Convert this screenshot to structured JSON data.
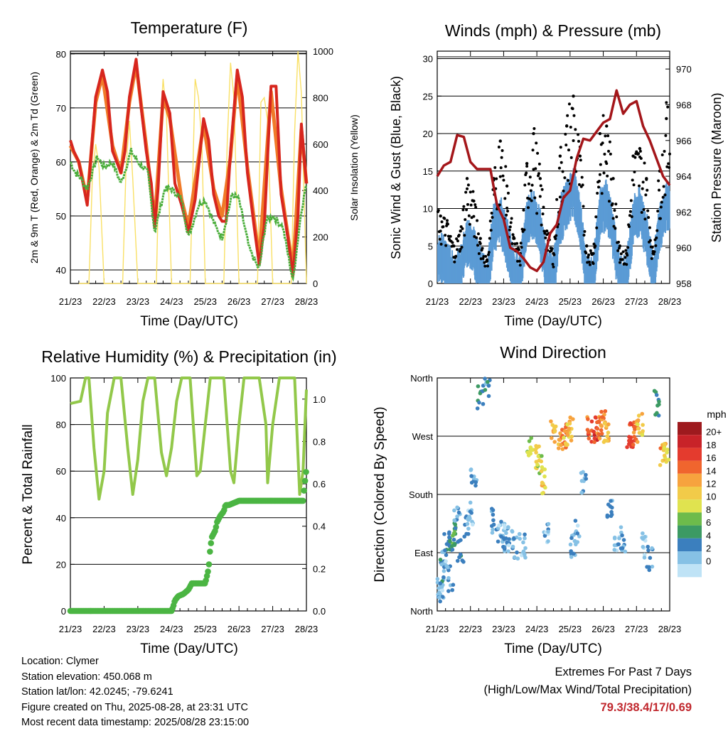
{
  "colors": {
    "temp_2m": "#d7261e",
    "temp_9m": "#f07a28",
    "dewpoint": "#4bae3c",
    "solar": "#f9e066",
    "gust": "#000000",
    "wind": "#5b9bd5",
    "pressure": "#a4161a",
    "rh": "#92c84a",
    "precip": "#4bb543"
  },
  "x_ticks": [
    "21/23",
    "22/23",
    "23/23",
    "24/23",
    "25/23",
    "26/23",
    "27/23",
    "28/23"
  ],
  "temperature": {
    "title": "Temperature (F)",
    "xlabel": "Time (Day/UTC)",
    "ylabel": "2m & 9m T (Red, Orange) & 2m Td (Green)",
    "y2label": "Solar Insolation (Yellow)"
  },
  "winds": {
    "title": "Winds (mph) & Pressure (mb)",
    "xlabel": "Time (Day/UTC)",
    "ylabel": "Sonic Wind & Gust (Blue, Black)",
    "y2label": "Station Pressure (Maroon)"
  },
  "humidity": {
    "title": "Relative Humidity (%) & Precipitation (in)",
    "xlabel": "Time (Day/UTC)",
    "ylabel": "Percent & Total Rainfall"
  },
  "direction": {
    "title": "Wind Direction",
    "xlabel": "Time (Day/UTC)",
    "ylabel": "Direction (Colored By Speed)",
    "legend_title": "mph",
    "legend_labels": [
      "20+",
      "18",
      "16",
      "14",
      "12",
      "10",
      "8",
      "6",
      "4",
      "2",
      "0"
    ],
    "legend_colors": [
      "#9e1a1e",
      "#c82329",
      "#e43b2e",
      "#f0652e",
      "#f7a33e",
      "#f2cb49",
      "#e0e34f",
      "#6dbb4b",
      "#3c9a63",
      "#3b7fbe",
      "#86c1e5",
      "#bfe3f6"
    ]
  },
  "info": {
    "location": "Location: Clymer",
    "elevation": "Station elevation: 450.068 m",
    "latlon": "Station lat/lon: 42.0245; -79.6241",
    "created": "Figure created on Thu, 2025-08-28, at 23:31 UTC",
    "recent": "Most recent data timestamp: 2025/08/28 23:15:00"
  },
  "extremes": {
    "title": "Extremes For Past 7 Days",
    "subtitle": "(High/Low/Max Wind/Total Precipitation)",
    "values": "79.3/38.4/17/0.69"
  },
  "chart_data": [
    {
      "type": "line",
      "title": "Temperature (F)",
      "xlabel": "Time (Day/UTC)",
      "ylabel": "2m & 9m T (Red, Orange) & 2m Td (Green)",
      "y2label": "Solar Insolation (Yellow)",
      "x_unit": "days since 21/23 UTC",
      "ylim": [
        37.5,
        80.5
      ],
      "y2lim": [
        0,
        1000
      ],
      "y_ticks": [
        40,
        50,
        60,
        70,
        80
      ],
      "y2_ticks": [
        0,
        200,
        400,
        600,
        800,
        1000
      ],
      "series": [
        {
          "name": "2m T",
          "axis": "left",
          "x": [
            0,
            0.1,
            0.25,
            0.5,
            0.62,
            0.75,
            0.95,
            1.1,
            1.25,
            1.5,
            1.62,
            1.75,
            1.95,
            2.1,
            2.25,
            2.4,
            2.5,
            2.6,
            2.75,
            2.95,
            3.1,
            3.3,
            3.5,
            3.7,
            3.95,
            4.1,
            4.25,
            4.4,
            4.5,
            4.62,
            4.75,
            4.95,
            5.1,
            5.25,
            5.45,
            5.6,
            5.75,
            5.95,
            6.1,
            6.25,
            6.45,
            6.6,
            6.75,
            6.85,
            7.0
          ],
          "y": [
            64,
            62,
            60,
            52,
            62,
            72,
            77,
            73,
            62,
            58,
            62,
            72,
            79,
            70,
            62,
            56,
            48,
            55,
            73,
            69,
            56,
            52,
            47,
            53,
            68,
            64,
            54,
            50,
            49,
            49,
            62,
            77,
            72,
            58,
            48,
            41,
            48,
            74,
            74,
            54,
            46,
            39,
            50,
            67,
            56
          ]
        },
        {
          "name": "9m T",
          "axis": "left",
          "x": [
            0,
            0.25,
            0.5,
            0.75,
            0.95,
            1.25,
            1.5,
            1.75,
            1.95,
            2.25,
            2.5,
            2.75,
            2.95,
            3.3,
            3.5,
            3.95,
            4.25,
            4.5,
            4.75,
            4.95,
            5.25,
            5.6,
            5.95,
            6.25,
            6.6,
            6.85,
            7.0
          ],
          "y": [
            63,
            60,
            53,
            71,
            76,
            63,
            58,
            71,
            78,
            63,
            49,
            72,
            68,
            53,
            48,
            67,
            55,
            50,
            61,
            76,
            59,
            42,
            73,
            55,
            40,
            66,
            56
          ]
        },
        {
          "name": "2m Td",
          "axis": "left",
          "x": [
            0,
            0.15,
            0.3,
            0.5,
            0.8,
            1.0,
            1.25,
            1.5,
            1.8,
            2.0,
            2.3,
            2.5,
            2.8,
            3.0,
            3.3,
            3.5,
            3.8,
            4.0,
            4.3,
            4.5,
            4.8,
            5.0,
            5.3,
            5.6,
            5.8,
            6.0,
            6.3,
            6.6,
            6.85,
            7.0
          ],
          "y": [
            60,
            58,
            57,
            55,
            61,
            59,
            60,
            56,
            62,
            60,
            58,
            47,
            55,
            55,
            53,
            46,
            52,
            53,
            48,
            46,
            54,
            53,
            44,
            40,
            49,
            50,
            48,
            38,
            51,
            56
          ]
        },
        {
          "name": "Solar",
          "axis": "right",
          "x": [
            0.25,
            0.55,
            0.65,
            0.75,
            0.85,
            1.0,
            1.25,
            1.55,
            1.65,
            1.75,
            1.85,
            2.0,
            2.25,
            2.55,
            2.65,
            2.75,
            2.85,
            3.0,
            3.25,
            3.55,
            3.7,
            3.8,
            3.9,
            4.0,
            4.25,
            4.55,
            4.65,
            4.75,
            4.85,
            5.0,
            5.25,
            5.55,
            5.65,
            5.75,
            5.85,
            6.0,
            6.25,
            6.55,
            6.65,
            6.75,
            6.85,
            7.0
          ],
          "y": [
            0,
            0,
            450,
            600,
            500,
            0,
            0,
            0,
            500,
            700,
            450,
            0,
            0,
            0,
            650,
            880,
            720,
            0,
            0,
            0,
            880,
            800,
            600,
            0,
            0,
            0,
            600,
            950,
            800,
            0,
            0,
            0,
            780,
            800,
            700,
            0,
            0,
            0,
            650,
            1000,
            820,
            0
          ]
        }
      ]
    },
    {
      "type": "scatter",
      "title": "Winds (mph) & Pressure (mb)",
      "xlabel": "Time (Day/UTC)",
      "ylabel": "Sonic Wind & Gust (Blue, Black)",
      "y2label": "Station Pressure (Maroon)",
      "x_unit": "days since 21/23 UTC",
      "ylim": [
        0,
        31
      ],
      "y2lim": [
        958,
        971
      ],
      "y_ticks": [
        0,
        5,
        10,
        15,
        20,
        25,
        30
      ],
      "y2_ticks": [
        958,
        960,
        962,
        964,
        966,
        968,
        970
      ],
      "series": [
        {
          "name": "Gust",
          "axis": "left",
          "x": [
            0.1,
            0.3,
            0.5,
            0.7,
            0.9,
            1.1,
            1.3,
            1.5,
            1.7,
            1.9,
            2.1,
            2.3,
            2.5,
            2.7,
            2.9,
            3.1,
            3.3,
            3.5,
            3.7,
            3.9,
            4.1,
            4.3,
            4.5,
            4.7,
            4.9,
            5.1,
            5.3,
            5.5,
            5.7,
            5.9,
            6.1,
            6.3,
            6.5,
            6.7,
            6.9
          ],
          "y": [
            9,
            8,
            5,
            7,
            14,
            11,
            6,
            3,
            14,
            19,
            13,
            6,
            4,
            16,
            20,
            14,
            7,
            4,
            17,
            21,
            25,
            17,
            5,
            4,
            20,
            21,
            14,
            5,
            4,
            17,
            18,
            14,
            4,
            15,
            22
          ]
        },
        {
          "name": "Wind",
          "axis": "left",
          "x": [
            0.1,
            0.3,
            0.5,
            0.7,
            0.9,
            1.1,
            1.3,
            1.5,
            1.7,
            1.9,
            2.1,
            2.3,
            2.5,
            2.7,
            2.9,
            3.1,
            3.3,
            3.5,
            3.7,
            3.9,
            4.1,
            4.3,
            4.5,
            4.7,
            4.9,
            5.1,
            5.3,
            5.5,
            5.7,
            5.9,
            6.1,
            6.3,
            6.5,
            6.7,
            6.9
          ],
          "y": [
            5,
            4,
            2,
            3,
            7,
            6,
            3,
            1,
            9,
            10,
            7,
            3,
            2,
            10,
            11,
            8,
            3,
            2,
            10,
            12,
            14,
            10,
            2,
            2,
            11,
            12,
            8,
            2,
            2,
            10,
            11,
            8,
            2,
            9,
            12
          ]
        },
        {
          "name": "Pressure",
          "axis": "right",
          "x": [
            0,
            0.2,
            0.4,
            0.6,
            0.8,
            1.0,
            1.2,
            1.4,
            1.6,
            1.8,
            2.0,
            2.2,
            2.4,
            2.6,
            2.8,
            3.0,
            3.2,
            3.4,
            3.6,
            3.8,
            4.0,
            4.2,
            4.4,
            4.6,
            4.8,
            5.0,
            5.2,
            5.4,
            5.6,
            5.8,
            6.0,
            6.2,
            6.4,
            6.6,
            6.8,
            7.0
          ],
          "y": [
            964,
            964.6,
            964.8,
            966.3,
            966.2,
            964.8,
            964.4,
            964.4,
            964.4,
            962.4,
            961.6,
            960,
            959.8,
            959.4,
            958.9,
            958.7,
            959.2,
            960.8,
            961.3,
            962.8,
            963.2,
            965,
            966.1,
            966,
            966.5,
            967,
            967.2,
            968.8,
            967.5,
            968,
            968.2,
            966.8,
            966,
            965,
            964,
            963.5
          ]
        }
      ]
    },
    {
      "type": "line",
      "title": "Relative Humidity (%) & Precipitation (in)",
      "xlabel": "Time (Day/UTC)",
      "ylabel": "Percent & Total Rainfall",
      "x_unit": "days since 21/23 UTC",
      "ylim": [
        0,
        100
      ],
      "y2lim": [
        0,
        1.1
      ],
      "y_ticks": [
        0,
        20,
        40,
        60,
        80,
        100
      ],
      "y2_ticks": [
        0.0,
        0.2,
        0.4,
        0.6,
        0.8,
        1.0
      ],
      "series": [
        {
          "name": "RH",
          "axis": "left",
          "x": [
            0,
            0.3,
            0.45,
            0.55,
            0.7,
            0.85,
            1.0,
            1.1,
            1.3,
            1.5,
            1.7,
            1.85,
            2.0,
            2.15,
            2.3,
            2.5,
            2.7,
            2.85,
            3.0,
            3.15,
            3.3,
            3.55,
            3.75,
            3.85,
            4.0,
            4.15,
            4.3,
            4.55,
            4.75,
            4.85,
            5.0,
            5.15,
            5.35,
            5.6,
            5.8,
            5.85,
            6.0,
            6.2,
            6.35,
            6.65,
            6.8,
            6.9,
            7.0
          ],
          "y": [
            89,
            90,
            100,
            100,
            70,
            48,
            60,
            85,
            100,
            100,
            70,
            50,
            65,
            90,
            100,
            100,
            68,
            58,
            70,
            90,
            100,
            100,
            58,
            60,
            80,
            100,
            100,
            100,
            60,
            55,
            80,
            100,
            100,
            100,
            80,
            55,
            80,
            100,
            100,
            100,
            50,
            60,
            95
          ]
        },
        {
          "name": "Precipitation",
          "axis": "right",
          "x": [
            0,
            0.5,
            1.0,
            2.0,
            3.0,
            3.05,
            3.1,
            3.2,
            3.35,
            3.5,
            3.6,
            3.75,
            4.0,
            4.1,
            4.15,
            4.2,
            4.3,
            4.35,
            4.45,
            4.55,
            4.6,
            4.7,
            5.0,
            6.0,
            6.9,
            6.95,
            7.0
          ],
          "y": [
            0,
            0,
            0,
            0,
            0,
            0.02,
            0.05,
            0.07,
            0.08,
            0.1,
            0.13,
            0.13,
            0.13,
            0.2,
            0.3,
            0.35,
            0.38,
            0.42,
            0.45,
            0.47,
            0.5,
            0.5,
            0.52,
            0.52,
            0.52,
            0.6,
            0.67
          ]
        }
      ]
    },
    {
      "type": "scatter",
      "title": "Wind Direction",
      "xlabel": "Time (Day/UTC)",
      "ylabel": "Direction (Colored By Speed)",
      "x_unit": "days since 21/23 UTC",
      "y_unit": "degrees from north, plotted North(0) - East(90) - South(180) - West(270) - North(360)",
      "y_ticks": [
        "North",
        "East",
        "South",
        "West",
        "North"
      ],
      "series": [
        {
          "name": "Direction",
          "x": [
            0.05,
            0.1,
            0.15,
            0.2,
            0.3,
            0.4,
            0.45,
            0.5,
            0.6,
            0.7,
            0.9,
            1.0,
            1.1,
            1.3,
            1.5,
            1.7,
            1.9,
            2.0,
            2.1,
            2.2,
            2.4,
            2.6,
            2.8,
            3.0,
            3.1,
            3.2,
            3.3,
            3.5,
            3.7,
            3.8,
            3.9,
            4.0,
            4.1,
            4.2,
            4.4,
            4.6,
            4.8,
            4.9,
            5.0,
            5.1,
            5.2,
            5.4,
            5.6,
            5.8,
            5.9,
            6.0,
            6.1,
            6.2,
            6.4,
            6.6,
            6.8,
            6.9
          ],
          "y": [
            30,
            40,
            60,
            80,
            100,
            50,
            110,
            120,
            140,
            90,
            130,
            150,
            200,
            330,
            350,
            140,
            120,
            110,
            120,
            110,
            100,
            100,
            260,
            240,
            230,
            200,
            120,
            280,
            265,
            270,
            275,
            280,
            100,
            120,
            200,
            280,
            280,
            285,
            290,
            280,
            160,
            100,
            110,
            270,
            275,
            280,
            285,
            100,
            80,
            320,
            245,
            250
          ],
          "speed": [
            3,
            2,
            4,
            2,
            5,
            3,
            6,
            7,
            3,
            4,
            3,
            2,
            3,
            5,
            4,
            3,
            2,
            3,
            2,
            2,
            3,
            2,
            9,
            11,
            10,
            12,
            2,
            13,
            14,
            15,
            12,
            13,
            3,
            2,
            3,
            16,
            18,
            15,
            14,
            13,
            3,
            2,
            3,
            18,
            17,
            15,
            12,
            2,
            3,
            5,
            14,
            11
          ]
        }
      ]
    }
  ]
}
